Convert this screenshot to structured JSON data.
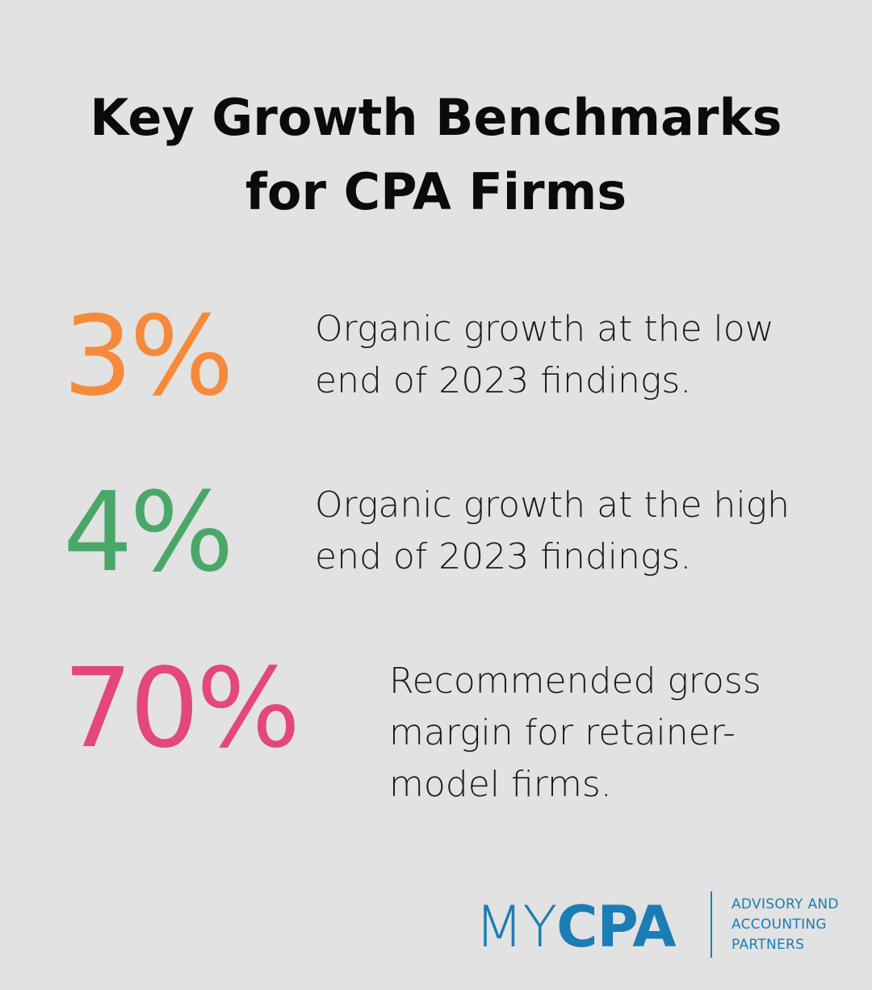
{
  "title": {
    "line1": "Key Growth Benchmarks",
    "line2": "for CPA Firms"
  },
  "stats": [
    {
      "value": "3%",
      "color": "#f58a3b",
      "description": "Organic growth at the low end of 2023 findings."
    },
    {
      "value": "4%",
      "color": "#4aa768",
      "description": "Organic growth at the high end of 2023 findings."
    },
    {
      "value": "70%",
      "color": "#e3477b",
      "description": "Recommended gross margin for retainer-model firms."
    }
  ],
  "logo": {
    "my": "MY",
    "cpa": "CPA",
    "tagline": [
      "ADVISORY AND",
      "ACCOUNTING",
      "PARTNERS"
    ],
    "color": "#1a7db6"
  }
}
